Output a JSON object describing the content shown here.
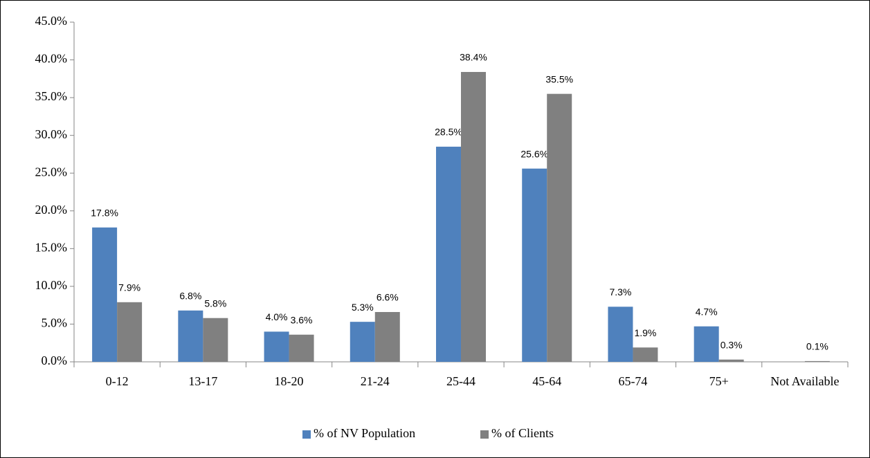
{
  "chart_data": {
    "type": "bar",
    "categories": [
      "0-12",
      "13-17",
      "18-20",
      "21-24",
      "25-44",
      "45-64",
      "65-74",
      "75+",
      "Not Available"
    ],
    "series": [
      {
        "name": "% of NV Population",
        "color": "#4f81bd",
        "values": [
          17.8,
          6.8,
          4.0,
          5.3,
          28.5,
          25.6,
          7.3,
          4.7,
          null
        ],
        "value_labels": [
          "17.8%",
          "6.8%",
          "4.0%",
          "5.3%",
          "28.5%",
          "25.6%",
          "7.3%",
          "4.7%",
          null
        ]
      },
      {
        "name": "% of Clients",
        "color": "#808080",
        "values": [
          7.9,
          5.8,
          3.6,
          6.6,
          38.4,
          35.5,
          1.9,
          0.3,
          0.1
        ],
        "value_labels": [
          "7.9%",
          "5.8%",
          "3.6%",
          "6.6%",
          "38.4%",
          "35.5%",
          "1.9%",
          "0.3%",
          "0.1%"
        ]
      }
    ],
    "ylim": [
      0,
      45
    ],
    "yticks": [
      {
        "value": 0,
        "label": "0.0%"
      },
      {
        "value": 5,
        "label": "5.0%"
      },
      {
        "value": 10,
        "label": "10.0%"
      },
      {
        "value": 15,
        "label": "15.0%"
      },
      {
        "value": 20,
        "label": "20.0%"
      },
      {
        "value": 25,
        "label": "25.0%"
      },
      {
        "value": 30,
        "label": "30.0%"
      },
      {
        "value": 35,
        "label": "35.0%"
      },
      {
        "value": 40,
        "label": "40.0%"
      },
      {
        "value": 45,
        "label": "45.0%"
      }
    ],
    "grid": false,
    "legend": "bottom"
  }
}
